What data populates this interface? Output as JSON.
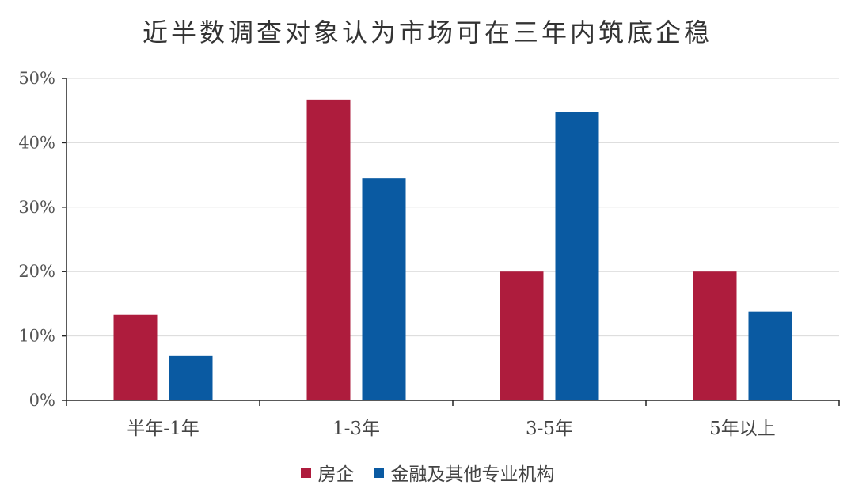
{
  "chart_data": {
    "type": "bar",
    "title": "近半数调查对象认为市场可在三年内筑底企稳",
    "categories": [
      "半年-1年",
      "1-3年",
      "3-5年",
      "5年以上"
    ],
    "series": [
      {
        "name": "房企",
        "values": [
          13.3,
          46.7,
          20.0,
          20.0
        ],
        "color": "#ae1c3d"
      },
      {
        "name": "金融及其他专业机构",
        "values": [
          6.9,
          34.5,
          44.8,
          13.8
        ],
        "color": "#0a5aa2"
      }
    ],
    "yticks": [
      "0%",
      "10%",
      "20%",
      "30%",
      "40%",
      "50%"
    ],
    "ylim": [
      0,
      50
    ],
    "grid": true,
    "legend_position": "bottom"
  }
}
